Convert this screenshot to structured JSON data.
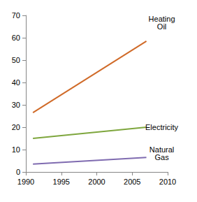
{
  "chart_data": {
    "type": "line",
    "x": [
      1991,
      2007
    ],
    "series": [
      {
        "name": "Heating Oil",
        "color": "#d06a28",
        "values": [
          26.5,
          58.5
        ]
      },
      {
        "name": "Electricity",
        "color": "#7ea63d",
        "values": [
          15,
          20
        ]
      },
      {
        "name": "Natural Gas",
        "color": "#7f6bb0",
        "values": [
          3.5,
          6.5
        ]
      }
    ],
    "xlim": [
      1990,
      2010
    ],
    "xticks": [
      1990,
      1995,
      2000,
      2005,
      2010
    ],
    "ylim": [
      0,
      70
    ],
    "yticks": [
      0,
      10,
      20,
      30,
      40,
      50,
      60,
      70
    ],
    "grid": false
  }
}
